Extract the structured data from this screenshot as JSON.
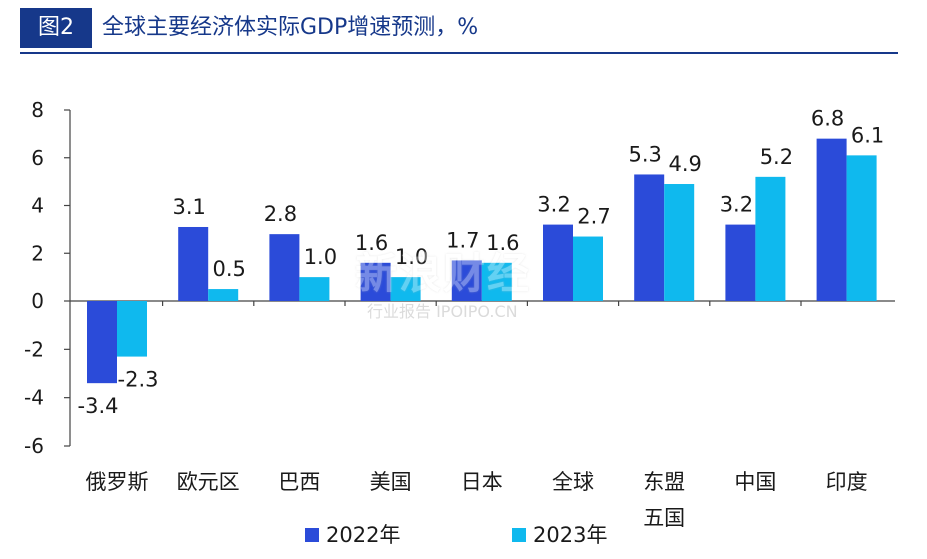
{
  "header": {
    "badge": "图2",
    "title": "全球主要经济体实际GDP增速预测，%"
  },
  "colors": {
    "title": "#16388a",
    "series_2022": "#2b4bd9",
    "series_2023": "#0fb9ee"
  },
  "chart_data": {
    "type": "bar",
    "categories": [
      "俄罗斯",
      "欧元区",
      "巴西",
      "美国",
      "日本",
      "全球",
      "东盟五国",
      "中国",
      "印度"
    ],
    "category_lines": [
      [
        "俄罗斯"
      ],
      [
        "欧元区"
      ],
      [
        "巴西"
      ],
      [
        "美国"
      ],
      [
        "日本"
      ],
      [
        "全球"
      ],
      [
        "东盟",
        "五国"
      ],
      [
        "中国"
      ],
      [
        "印度"
      ]
    ],
    "series": [
      {
        "name": "2022年",
        "values": [
          -3.4,
          3.1,
          2.8,
          1.6,
          1.7,
          3.2,
          5.3,
          3.2,
          6.8
        ],
        "labels": [
          "-3.4",
          "3.1",
          "2.8",
          "1.6",
          "1.7",
          "3.2",
          "5.3",
          "3.2",
          "6.8"
        ]
      },
      {
        "name": "2023年",
        "values": [
          -2.3,
          0.5,
          1.0,
          1.0,
          1.6,
          2.7,
          4.9,
          5.2,
          6.1
        ],
        "labels": [
          "-2.3",
          "0.5",
          "1.0",
          "1.0",
          "1.6",
          "2.7",
          "4.9",
          "5.2",
          "6.1"
        ]
      }
    ],
    "ylim": [
      -6,
      8
    ],
    "yticks": [
      "8",
      "6",
      "4",
      "2",
      "0",
      "-2",
      "-4",
      "-6"
    ],
    "ytick_values": [
      8,
      6,
      4,
      2,
      0,
      -2,
      -4,
      -6
    ],
    "grid": false,
    "legend_position": "bottom"
  },
  "watermark": {
    "main": "新浪财经",
    "sub": "行业报告 IPOIPO.CN"
  }
}
